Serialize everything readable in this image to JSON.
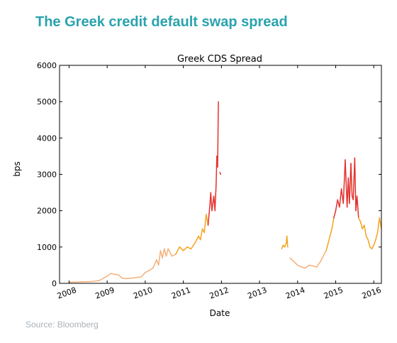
{
  "heading": "The Greek credit default swap spread",
  "source": "Source: Bloomberg",
  "colors": {
    "heading": "#2aa3ad",
    "low": "#f4b07a",
    "mid": "#f5a31c",
    "high": "#e3312d",
    "source": "#aab2b8"
  },
  "chart_data": {
    "type": "line",
    "title": "Greek CDS Spread",
    "xlabel": "Date",
    "ylabel": "bps",
    "xlim": [
      2007.75,
      2016.2
    ],
    "ylim": [
      0,
      6000
    ],
    "y_ticks": [
      0,
      1000,
      2000,
      3000,
      4000,
      5000,
      6000
    ],
    "x_ticks": [
      2008,
      2009,
      2010,
      2011,
      2012,
      2013,
      2014,
      2015,
      2016
    ],
    "x_tick_labels": [
      "2008",
      "2009",
      "2010",
      "2011",
      "2012",
      "2013",
      "2014",
      "2015",
      "2016"
    ],
    "grid": false,
    "color_bands": [
      {
        "name": "below 1000 bps",
        "max": 1000,
        "color": "#f4b07a"
      },
      {
        "name": "1000-2000 bps",
        "max": 2000,
        "color": "#f5a31c"
      },
      {
        "name": "above 2000 bps",
        "max": 999999,
        "color": "#e3312d"
      }
    ],
    "series": [
      {
        "x": [
          2008.0,
          2008.3,
          2008.6,
          2008.8,
          2009.0,
          2009.1,
          2009.2,
          2009.3,
          2009.4,
          2009.5,
          2009.7,
          2009.9,
          2010.0,
          2010.1,
          2010.2,
          2010.3,
          2010.35,
          2010.4,
          2010.45,
          2010.5,
          2010.55,
          2010.6,
          2010.7,
          2010.8,
          2010.9,
          2011.0,
          2011.1,
          2011.2,
          2011.3,
          2011.4,
          2011.45,
          2011.5,
          2011.55,
          2011.6,
          2011.65,
          2011.7,
          2011.72,
          2011.75,
          2011.8,
          2011.83,
          2011.86,
          2011.88,
          2011.9,
          2011.92
        ],
        "y": [
          30,
          40,
          50,
          80,
          200,
          270,
          250,
          230,
          140,
          130,
          150,
          180,
          300,
          350,
          420,
          650,
          500,
          900,
          700,
          950,
          750,
          950,
          750,
          800,
          1000,
          900,
          1000,
          950,
          1100,
          1300,
          1200,
          1500,
          1400,
          1900,
          1600,
          2200,
          2500,
          2000,
          2400,
          2000,
          2700,
          3500,
          3200,
          5000
        ]
      },
      {
        "x": [
          2011.96,
          2011.98
        ],
        "y": [
          3050,
          3000
        ]
      },
      {
        "x": [
          2013.58,
          2013.62,
          2013.66,
          2013.7,
          2013.72,
          2013.74
        ],
        "y": [
          950,
          1050,
          1000,
          1100,
          1300,
          1000
        ]
      },
      {
        "x": [
          2013.8,
          2013.9,
          2014.0,
          2014.1,
          2014.2,
          2014.3,
          2014.4,
          2014.5,
          2014.6,
          2014.7,
          2014.75,
          2014.8,
          2014.85,
          2014.9,
          2014.95,
          2015.0,
          2015.05,
          2015.1,
          2015.15,
          2015.2,
          2015.25,
          2015.3,
          2015.33,
          2015.36,
          2015.4,
          2015.43,
          2015.46,
          2015.5,
          2015.53,
          2015.56,
          2015.6,
          2015.65,
          2015.7,
          2015.75,
          2015.8,
          2015.85,
          2015.9,
          2015.95,
          2016.0,
          2016.05,
          2016.1,
          2016.15,
          2016.2
        ],
        "y": [
          700,
          600,
          500,
          450,
          420,
          500,
          480,
          450,
          600,
          800,
          900,
          1100,
          1300,
          1500,
          1800,
          2000,
          2300,
          2100,
          2600,
          2200,
          3400,
          2100,
          2900,
          2200,
          3300,
          2400,
          2300,
          3450,
          2000,
          2400,
          1800,
          1700,
          1500,
          1600,
          1300,
          1200,
          1000,
          950,
          1050,
          1200,
          1400,
          1800,
          1500
        ]
      }
    ]
  }
}
